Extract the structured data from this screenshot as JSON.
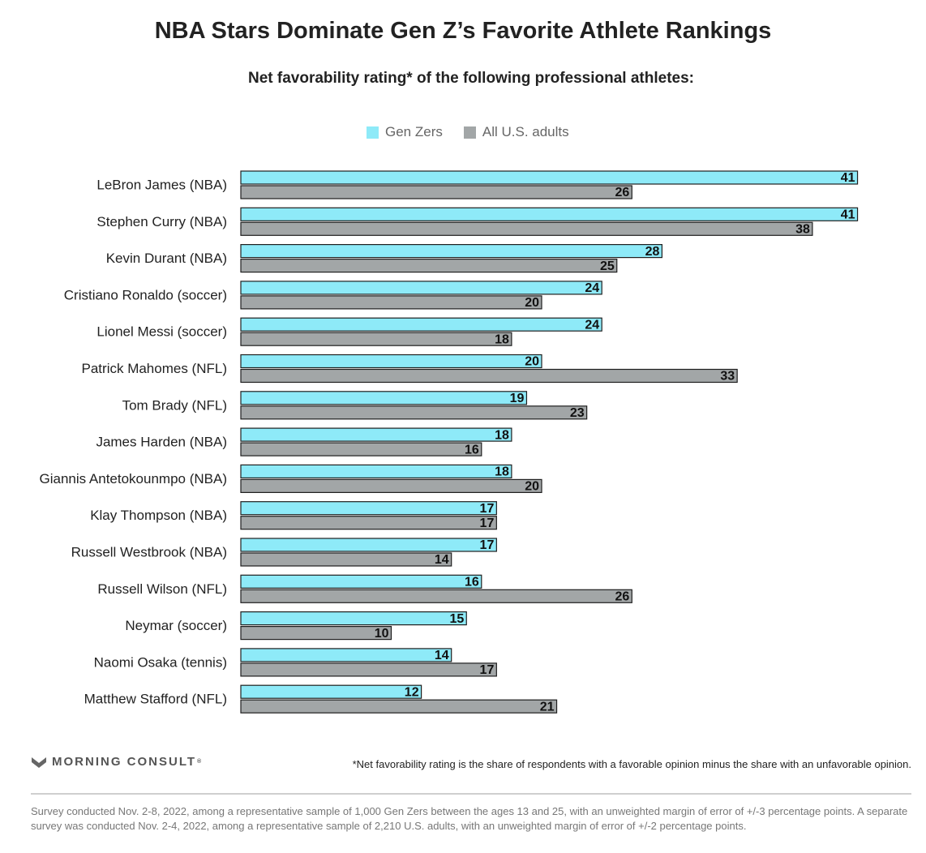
{
  "header": {
    "title": "NBA Stars Dominate Gen Z’s Favorite Athlete Rankings",
    "subtitle": "Net favorability rating* of the following professional athletes:"
  },
  "legend": {
    "gen_z_label": "Gen Zers",
    "adults_label": "All U.S. adults"
  },
  "colors": {
    "gen_z": "#8eeaf8",
    "adults": "#a2a6a7",
    "bar_stroke": "#1f1f1f",
    "text": "#222222"
  },
  "chart_data": {
    "type": "bar",
    "orientation": "horizontal",
    "title": "NBA Stars Dominate Gen Z’s Favorite Athlete Rankings",
    "subtitle": "Net favorability rating* of the following professional athletes:",
    "xlabel": "",
    "ylabel": "",
    "xlim": [
      0,
      42
    ],
    "grid": false,
    "legend_position": "top-center",
    "categories": [
      "LeBron James (NBA)",
      "Stephen Curry (NBA)",
      "Kevin Durant (NBA)",
      "Cristiano Ronaldo (soccer)",
      "Lionel Messi (soccer)",
      "Patrick Mahomes (NFL)",
      "Tom Brady (NFL)",
      "James Harden (NBA)",
      "Giannis Antetokounmpo (NBA)",
      "Klay Thompson (NBA)",
      "Russell Westbrook (NBA)",
      "Russell Wilson (NFL)",
      "Neymar (soccer)",
      "Naomi Osaka (tennis)",
      "Matthew Stafford (NFL)"
    ],
    "series": [
      {
        "name": "Gen Zers",
        "values": [
          41,
          41,
          28,
          24,
          24,
          20,
          19,
          18,
          18,
          17,
          17,
          16,
          15,
          14,
          12
        ]
      },
      {
        "name": "All U.S. adults",
        "values": [
          26,
          38,
          25,
          20,
          18,
          33,
          23,
          16,
          20,
          17,
          14,
          26,
          10,
          17,
          21
        ]
      }
    ]
  },
  "footer": {
    "brand": "MORNING CONSULT",
    "brand_mark": "®",
    "footnote": "*Net favorability rating is the share of respondents with a favorable opinion minus the share with an unfavorable opinion.",
    "methodology": "Survey conducted Nov. 2-8, 2022, among a representative sample of 1,000 Gen Zers between the ages 13 and 25, with an unweighted margin of error of +/-3 percentage points. A separate survey was conducted Nov. 2-4, 2022, among a representative sample of 2,210 U.S. adults, with an unweighted margin of error of +/-2 percentage points."
  }
}
